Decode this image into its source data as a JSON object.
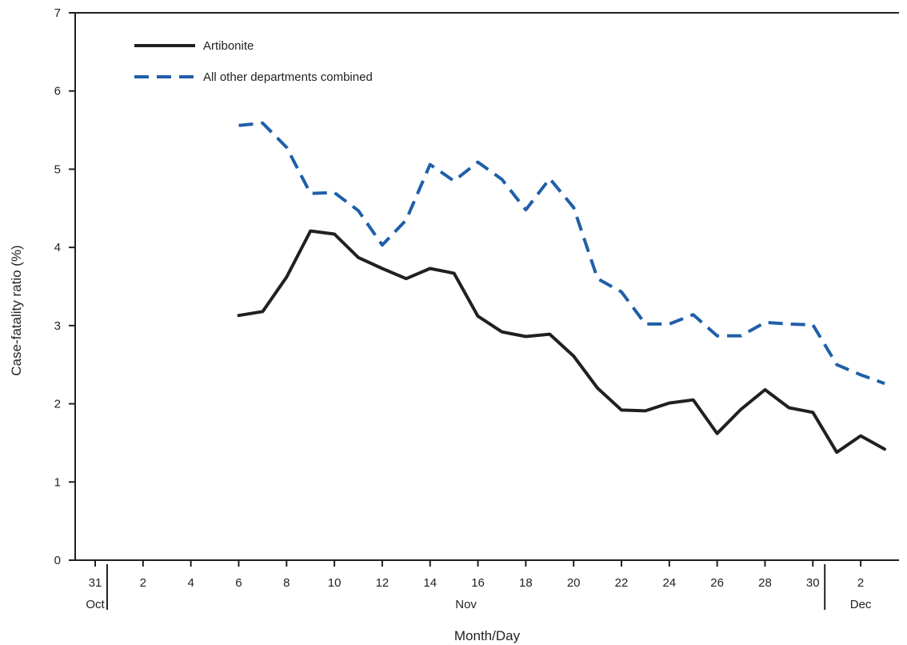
{
  "chart_data": {
    "type": "line",
    "title": "",
    "xlabel": "Month/Day",
    "ylabel": "Case-fatality ratio (%)",
    "ylim": [
      0,
      7
    ],
    "yticks": [
      0,
      1,
      2,
      3,
      4,
      5,
      6,
      7
    ],
    "grid": false,
    "legend_position": "top-left",
    "x_dates": [
      "Oct 31",
      "Nov 1",
      "Nov 2",
      "Nov 3",
      "Nov 4",
      "Nov 5",
      "Nov 6",
      "Nov 7",
      "Nov 8",
      "Nov 9",
      "Nov 10",
      "Nov 11",
      "Nov 12",
      "Nov 13",
      "Nov 14",
      "Nov 15",
      "Nov 16",
      "Nov 17",
      "Nov 18",
      "Nov 19",
      "Nov 20",
      "Nov 21",
      "Nov 22",
      "Nov 23",
      "Nov 24",
      "Nov 25",
      "Nov 26",
      "Nov 27",
      "Nov 28",
      "Nov 29",
      "Nov 30",
      "Dec 1",
      "Dec 2",
      "Dec 3"
    ],
    "x_tick_labels": [
      {
        "date": "Oct 31",
        "label": "31"
      },
      {
        "date": "Nov 2",
        "label": "2"
      },
      {
        "date": "Nov 4",
        "label": "4"
      },
      {
        "date": "Nov 6",
        "label": "6"
      },
      {
        "date": "Nov 8",
        "label": "8"
      },
      {
        "date": "Nov 10",
        "label": "10"
      },
      {
        "date": "Nov 12",
        "label": "12"
      },
      {
        "date": "Nov 14",
        "label": "14"
      },
      {
        "date": "Nov 16",
        "label": "16"
      },
      {
        "date": "Nov 18",
        "label": "18"
      },
      {
        "date": "Nov 20",
        "label": "20"
      },
      {
        "date": "Nov 22",
        "label": "22"
      },
      {
        "date": "Nov 24",
        "label": "24"
      },
      {
        "date": "Nov 26",
        "label": "26"
      },
      {
        "date": "Nov 28",
        "label": "28"
      },
      {
        "date": "Nov 30",
        "label": "30"
      },
      {
        "date": "Dec 2",
        "label": "2"
      }
    ],
    "month_labels": [
      {
        "label": "Oct",
        "start": "Oct 31",
        "end": "Oct 31"
      },
      {
        "label": "Nov",
        "start": "Nov 1",
        "end": "Nov 30"
      },
      {
        "label": "Dec",
        "start": "Dec 1",
        "end": "Dec 3"
      }
    ],
    "series": [
      {
        "name": "Artibonite",
        "color": "#231f20",
        "style": "solid",
        "x": [
          "Nov 6",
          "Nov 7",
          "Nov 8",
          "Nov 9",
          "Nov 10",
          "Nov 11",
          "Nov 12",
          "Nov 13",
          "Nov 14",
          "Nov 15",
          "Nov 16",
          "Nov 17",
          "Nov 18",
          "Nov 19",
          "Nov 20",
          "Nov 21",
          "Nov 22",
          "Nov 23",
          "Nov 24",
          "Nov 25",
          "Nov 26",
          "Nov 27",
          "Nov 28",
          "Nov 29",
          "Nov 30",
          "Dec 1",
          "Dec 2",
          "Dec 3"
        ],
        "values": [
          3.13,
          3.18,
          3.62,
          4.21,
          4.17,
          3.87,
          3.73,
          3.6,
          3.73,
          3.67,
          3.12,
          2.92,
          2.86,
          2.89,
          2.61,
          2.2,
          1.92,
          1.91,
          2.01,
          2.05,
          1.62,
          1.93,
          2.18,
          1.95,
          1.89,
          1.38,
          1.59,
          1.42
        ]
      },
      {
        "name": "All other departments combined",
        "color": "#1f5fa8",
        "style": "dashed",
        "x": [
          "Nov 6",
          "Nov 7",
          "Nov 8",
          "Nov 9",
          "Nov 10",
          "Nov 11",
          "Nov 12",
          "Nov 13",
          "Nov 14",
          "Nov 15",
          "Nov 16",
          "Nov 17",
          "Nov 18",
          "Nov 19",
          "Nov 20",
          "Nov 21",
          "Nov 22",
          "Nov 23",
          "Nov 24",
          "Nov 25",
          "Nov 26",
          "Nov 27",
          "Nov 28",
          "Nov 29",
          "Nov 30",
          "Dec 1",
          "Dec 2",
          "Dec 3"
        ],
        "values": [
          5.56,
          5.59,
          5.28,
          4.69,
          4.7,
          4.47,
          4.03,
          4.35,
          5.06,
          4.85,
          5.09,
          4.87,
          4.48,
          4.88,
          4.51,
          3.6,
          3.43,
          3.02,
          3.02,
          3.14,
          2.87,
          2.87,
          3.04,
          3.02,
          3.01,
          2.5,
          2.37,
          2.26
        ]
      }
    ]
  }
}
